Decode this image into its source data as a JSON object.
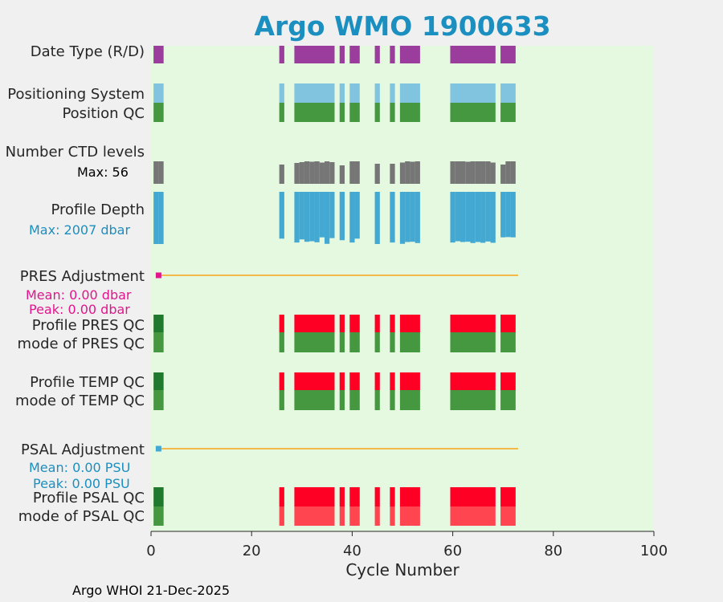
{
  "title": "Argo WMO 1900633",
  "footer": "Argo WHOI 21-Dec-2025",
  "colors": {
    "title": "#1a8fc0",
    "background": "#f0f0f0",
    "plot_bg": "#e5f8e0",
    "purple": "#9a3d9d",
    "light_blue": "#80c4e0",
    "qc_green": "#45983f",
    "qc_dark_green": "#1f7a2e",
    "gray": "#767676",
    "depth_blue": "#43a9d2",
    "red": "#ff0025",
    "light_red": "#ff4550",
    "orange": "#f5b949",
    "magenta": "#e0168d",
    "cyan_text": "#1a8fc0"
  },
  "labels": {
    "date_type": "Date Type (R/D)",
    "positioning_system": "Positioning System",
    "position_qc": "Position QC",
    "number_ctd_levels": "Number CTD levels",
    "ctd_max": "Max: 56",
    "profile_depth": "Profile Depth",
    "depth_max": "Max: 2007 dbar",
    "pres_adjustment": "PRES Adjustment",
    "pres_mean": "Mean: 0.00 dbar",
    "pres_peak": "Peak: 0.00 dbar",
    "profile_pres_qc": "Profile PRES QC",
    "mode_pres_qc": "mode of PRES QC",
    "profile_temp_qc": "Profile TEMP QC",
    "mode_temp_qc": "mode of TEMP QC",
    "psal_adjustment": "PSAL Adjustment",
    "psal_mean": "Mean: 0.00 PSU",
    "psal_peak": "Peak: 0.00 PSU",
    "profile_psal_qc": "Profile PSAL QC",
    "mode_psal_qc": "mode of PSAL QC"
  },
  "chart_data": {
    "type": "bar",
    "xlabel": "Cycle Number",
    "xlim": [
      0,
      100
    ],
    "xticks": [
      "0",
      "20",
      "40",
      "60",
      "80",
      "100"
    ],
    "grid": false,
    "cycle_segments": [
      [
        1,
        2
      ],
      [
        26,
        26
      ],
      [
        29,
        36
      ],
      [
        38,
        38
      ],
      [
        40,
        41
      ],
      [
        45,
        45
      ],
      [
        48,
        48
      ],
      [
        50,
        53
      ],
      [
        60,
        68
      ],
      [
        70,
        72
      ]
    ],
    "adjustment_line": {
      "from": 2,
      "to": 73
    },
    "ctd_levels": [
      {
        "x": 1,
        "v": 56
      },
      {
        "x": 2,
        "v": 56
      },
      {
        "x": 26,
        "v": 48
      },
      {
        "x": 29,
        "v": 52
      },
      {
        "x": 30,
        "v": 54
      },
      {
        "x": 31,
        "v": 56
      },
      {
        "x": 32,
        "v": 55
      },
      {
        "x": 33,
        "v": 56
      },
      {
        "x": 34,
        "v": 53
      },
      {
        "x": 35,
        "v": 56
      },
      {
        "x": 36,
        "v": 54
      },
      {
        "x": 38,
        "v": 46
      },
      {
        "x": 40,
        "v": 56
      },
      {
        "x": 41,
        "v": 56
      },
      {
        "x": 45,
        "v": 50
      },
      {
        "x": 48,
        "v": 50
      },
      {
        "x": 50,
        "v": 53
      },
      {
        "x": 51,
        "v": 56
      },
      {
        "x": 52,
        "v": 55
      },
      {
        "x": 53,
        "v": 56
      },
      {
        "x": 60,
        "v": 56
      },
      {
        "x": 61,
        "v": 56
      },
      {
        "x": 62,
        "v": 56
      },
      {
        "x": 63,
        "v": 55
      },
      {
        "x": 64,
        "v": 56
      },
      {
        "x": 65,
        "v": 56
      },
      {
        "x": 66,
        "v": 56
      },
      {
        "x": 67,
        "v": 56
      },
      {
        "x": 68,
        "v": 53
      },
      {
        "x": 70,
        "v": 48
      },
      {
        "x": 71,
        "v": 56
      },
      {
        "x": 72,
        "v": 56
      }
    ],
    "profile_depth": [
      {
        "x": 1,
        "v": 2007
      },
      {
        "x": 2,
        "v": 2007
      },
      {
        "x": 26,
        "v": 1800
      },
      {
        "x": 29,
        "v": 1950
      },
      {
        "x": 30,
        "v": 1830
      },
      {
        "x": 31,
        "v": 1920
      },
      {
        "x": 32,
        "v": 1900
      },
      {
        "x": 33,
        "v": 1940
      },
      {
        "x": 34,
        "v": 1750
      },
      {
        "x": 35,
        "v": 2000
      },
      {
        "x": 36,
        "v": 1780
      },
      {
        "x": 38,
        "v": 1860
      },
      {
        "x": 40,
        "v": 1950
      },
      {
        "x": 41,
        "v": 1800
      },
      {
        "x": 45,
        "v": 2007
      },
      {
        "x": 48,
        "v": 1950
      },
      {
        "x": 50,
        "v": 2000
      },
      {
        "x": 51,
        "v": 1930
      },
      {
        "x": 52,
        "v": 1920
      },
      {
        "x": 53,
        "v": 1970
      },
      {
        "x": 60,
        "v": 1950
      },
      {
        "x": 61,
        "v": 1900
      },
      {
        "x": 62,
        "v": 1930
      },
      {
        "x": 63,
        "v": 1920
      },
      {
        "x": 64,
        "v": 1970
      },
      {
        "x": 65,
        "v": 1930
      },
      {
        "x": 66,
        "v": 1960
      },
      {
        "x": 67,
        "v": 1910
      },
      {
        "x": 68,
        "v": 1960
      },
      {
        "x": 70,
        "v": 1750
      },
      {
        "x": 71,
        "v": 1740
      },
      {
        "x": 72,
        "v": 1750
      }
    ],
    "adjustment_marker_x": 1.5
  }
}
